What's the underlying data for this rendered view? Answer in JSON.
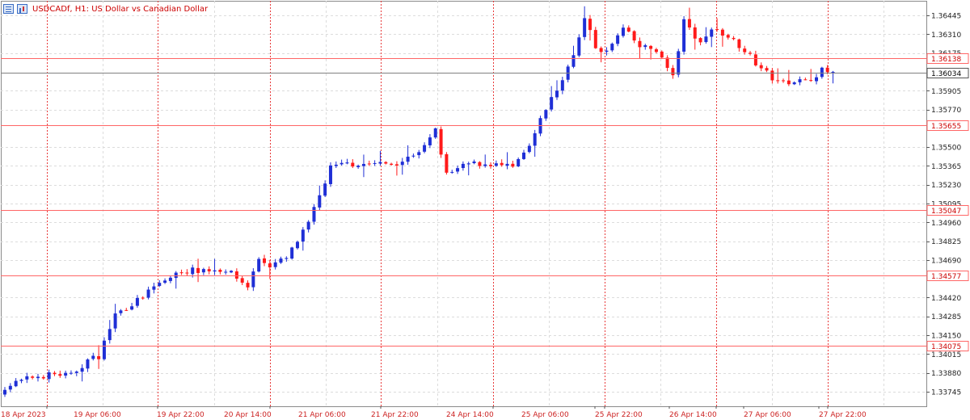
{
  "header": {
    "symbol_line": "USDCADf, H1:  US Dollar vs Canadian Dollar",
    "icons": [
      "list-icon",
      "chart-bars-icon"
    ]
  },
  "colors": {
    "bull": "#1f2fd6",
    "bear": "#ff1a1a",
    "level_line": "#ff6666",
    "current_price_line": "#808080",
    "grid": "#dcdcdc",
    "separator": "#e83a3a",
    "axis_text": "#222222",
    "date_text": "#cc2222"
  },
  "chart_data": {
    "type": "candlestick",
    "instrument": "USDCADf",
    "timeframe": "H1",
    "title": "US Dollar vs Canadian Dollar",
    "ylim": [
      1.3364,
      1.3655
    ],
    "y_ticks": [
      "1.36445",
      "1.36310",
      "1.36175",
      "1.35905",
      "1.35770",
      "1.35500",
      "1.35365",
      "1.35230",
      "1.35095",
      "1.34960",
      "1.34825",
      "1.34690",
      "1.34420",
      "1.34285",
      "1.34150",
      "1.34015",
      "1.33880",
      "1.33745"
    ],
    "x_tick_labels": [
      "18 Apr 2023",
      "19 Apr 06:00",
      "19 Apr 22:00",
      "20 Apr 14:00",
      "21 Apr 06:00",
      "21 Apr 22:00",
      "24 Apr 14:00",
      "25 Apr 06:00",
      "25 Apr 22:00",
      "26 Apr 14:00",
      "27 Apr 06:00",
      "27 Apr 22:00"
    ],
    "horizontal_levels": [
      {
        "price": 1.36138,
        "label": "1.36138"
      },
      {
        "price": 1.35655,
        "label": "1.35655"
      },
      {
        "price": 1.35047,
        "label": "1.35047"
      },
      {
        "price": 1.34577,
        "label": "1.34577"
      },
      {
        "price": 1.34075,
        "label": "1.34075"
      }
    ],
    "current_price": {
      "price": 1.36034,
      "label": "1.36034"
    },
    "grid": true,
    "anchors": [
      [
        0,
        1.3376,
        1.3378
      ],
      [
        5,
        1.339,
        1.3385
      ],
      [
        9,
        1.3388,
        1.3387
      ],
      [
        12,
        1.3388,
        1.3386
      ],
      [
        15,
        1.3398,
        1.3397
      ],
      [
        17,
        1.3401,
        1.34
      ],
      [
        20,
        1.343,
        1.343
      ],
      [
        24,
        1.3442,
        1.344
      ],
      [
        28,
        1.3458,
        1.3452
      ],
      [
        32,
        1.346,
        1.3461
      ],
      [
        36,
        1.3465,
        1.3462
      ],
      [
        40,
        1.3458,
        1.3462
      ],
      [
        44,
        1.3464,
        1.345
      ],
      [
        46,
        1.3475,
        1.347
      ],
      [
        48,
        1.3458,
        1.3465
      ],
      [
        51,
        1.3468,
        1.347
      ],
      [
        55,
        1.3488,
        1.3495
      ],
      [
        59,
        1.353,
        1.3535
      ],
      [
        62,
        1.3528,
        1.3538
      ],
      [
        65,
        1.3548,
        1.3538
      ],
      [
        70,
        1.3548,
        1.3538
      ],
      [
        72,
        1.3538,
        1.354
      ],
      [
        76,
        1.3555,
        1.355
      ],
      [
        78,
        1.3558,
        1.3562
      ],
      [
        80,
        1.354,
        1.353
      ],
      [
        84,
        1.3542,
        1.3538
      ],
      [
        88,
        1.3542,
        1.3538
      ],
      [
        92,
        1.3532,
        1.3535
      ],
      [
        95,
        1.3545,
        1.355
      ],
      [
        98,
        1.358,
        1.3578
      ],
      [
        101,
        1.3585,
        1.3598
      ],
      [
        104,
        1.3618,
        1.3628
      ],
      [
        105,
        1.364,
        1.3642
      ],
      [
        107,
        1.3632,
        1.3622
      ],
      [
        109,
        1.3622,
        1.3618
      ],
      [
        112,
        1.363,
        1.3635
      ],
      [
        115,
        1.3628,
        1.3622
      ],
      [
        118,
        1.362,
        1.362
      ],
      [
        121,
        1.361,
        1.36
      ],
      [
        123,
        1.363,
        1.364
      ],
      [
        126,
        1.3632,
        1.3625
      ],
      [
        128,
        1.3633,
        1.3635
      ],
      [
        131,
        1.3628,
        1.363
      ],
      [
        134,
        1.3625,
        1.362
      ],
      [
        136,
        1.362,
        1.361
      ],
      [
        140,
        1.3598,
        1.3596
      ],
      [
        143,
        1.36,
        1.3598
      ],
      [
        145,
        1.36,
        1.3597
      ],
      [
        148,
        1.3602,
        1.3605
      ],
      [
        150,
        1.3604,
        1.3603
      ]
    ]
  }
}
